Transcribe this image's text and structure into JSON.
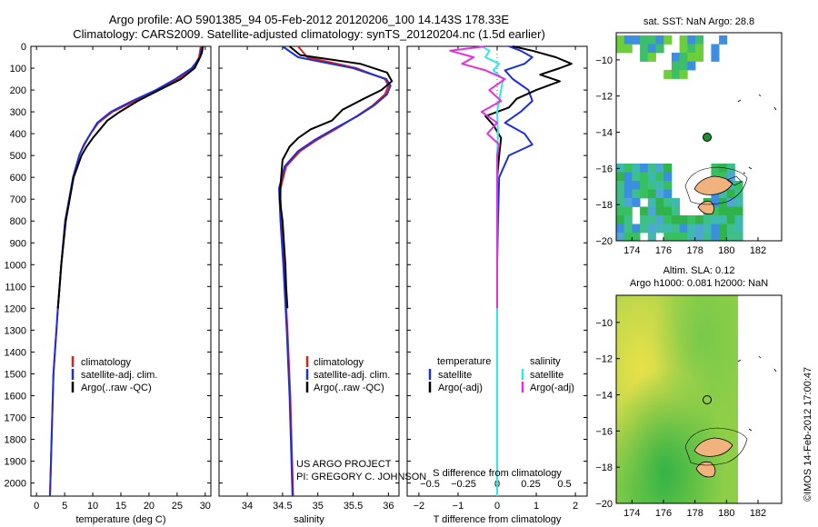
{
  "title_line1": "Argo profile: AO 5901385_94 05-Feb-2012 20120206_100 14.143S 178.33E",
  "title_line2": "Climatology: CARS2009. Satellite-adjusted climatology: synTS_20120204.nc (1.5d earlier)",
  "colors": {
    "clim": "#e0201b",
    "sat": "#1f2fd6",
    "argo": "#000000",
    "sal_sat": "#33e6e6",
    "sal_argo": "#e033e0",
    "land": "#f2b27e",
    "float_marker": "#1a8f2a"
  },
  "chart_data": [
    {
      "type": "line",
      "id": "temperature",
      "xlabel": "temperature (deg C)",
      "ylabel": "",
      "xlim": [
        -1,
        31
      ],
      "ylim": [
        2060,
        0
      ],
      "x_ticks": [
        0,
        5,
        10,
        15,
        20,
        25,
        30
      ],
      "x_tick_labels": [
        "0",
        "5",
        "10",
        "15",
        "20",
        "25",
        "30"
      ],
      "y_ticks": [
        0,
        100,
        200,
        300,
        400,
        500,
        600,
        700,
        800,
        900,
        1000,
        1100,
        1200,
        1300,
        1400,
        1500,
        1600,
        1700,
        1800,
        1900,
        2000
      ],
      "y_tick_labels": [
        "0",
        "100",
        "200",
        "300",
        "400",
        "500",
        "600",
        "700",
        "800",
        "900",
        "1000",
        "1100",
        "1200",
        "1300",
        "1400",
        "1500",
        "1600",
        "1700",
        "1800",
        "1900",
        "2000"
      ],
      "legend": [
        "climatology",
        "satellite-adj. clim.",
        "Argo(..raw -QC)"
      ],
      "legend_position": "bottom-center",
      "series": [
        {
          "name": "climatology",
          "color_key": "clim",
          "depth": [
            0,
            50,
            100,
            150,
            200,
            250,
            300,
            350,
            400,
            450,
            500,
            600,
            700,
            800,
            1000,
            1200,
            1500,
            2060
          ],
          "values": [
            29.2,
            28.9,
            27.8,
            25.2,
            21.7,
            17.5,
            13.5,
            11.0,
            9.6,
            8.4,
            7.6,
            6.5,
            5.8,
            5.1,
            4.4,
            3.8,
            3.0,
            2.4
          ]
        },
        {
          "name": "satellite-adj. clim.",
          "color_key": "sat",
          "depth": [
            0,
            50,
            100,
            150,
            200,
            250,
            300,
            350,
            400,
            450,
            500,
            600,
            700,
            800,
            1000,
            1200,
            1500,
            2060
          ],
          "values": [
            29.4,
            29.1,
            27.6,
            24.7,
            21.2,
            17.0,
            13.2,
            10.8,
            9.6,
            8.5,
            7.6,
            6.5,
            5.8,
            5.1,
            4.4,
            3.8,
            3.0,
            2.4
          ]
        },
        {
          "name": "Argo(..raw -QC)",
          "color_key": "argo",
          "depth": [
            0,
            30,
            60,
            100,
            150,
            200,
            250,
            300,
            340,
            380,
            420,
            460,
            500,
            600,
            700,
            800,
            900,
            1000,
            1100,
            1200
          ],
          "values": [
            29.6,
            29.4,
            28.9,
            28.1,
            25.7,
            21.8,
            18.0,
            14.8,
            12.6,
            11.3,
            10.0,
            8.9,
            8.0,
            6.6,
            5.9,
            5.2,
            4.8,
            4.4,
            4.1,
            3.8
          ]
        }
      ]
    },
    {
      "type": "line",
      "id": "salinity",
      "xlabel": "salinity",
      "xlim": [
        33.6,
        36.15
      ],
      "ylim": [
        2060,
        0
      ],
      "x_ticks": [
        34,
        34.5,
        35,
        35.5,
        36
      ],
      "x_tick_labels": [
        "34",
        "34.5",
        "35",
        "35.5",
        "36"
      ],
      "legend": [
        "climatology",
        "satellite-adj. clim.",
        "Argo(..raw -QC)"
      ],
      "legend_position": "bottom-center",
      "annotation": [
        "US ARGO PROJECT",
        "PI: GREGORY C. JOHNSON"
      ],
      "series": [
        {
          "name": "climatology",
          "color_key": "clim",
          "depth": [
            0,
            50,
            100,
            150,
            180,
            220,
            270,
            320,
            380,
            430,
            480,
            550,
            650,
            800,
            1000,
            1300,
            1600,
            2060
          ],
          "values": [
            34.72,
            34.85,
            35.55,
            35.95,
            36.0,
            35.95,
            35.78,
            35.55,
            35.25,
            34.98,
            34.75,
            34.55,
            34.47,
            34.48,
            34.52,
            34.57,
            34.61,
            34.65
          ]
        },
        {
          "name": "satellite-adj. clim.",
          "color_key": "sat",
          "depth": [
            0,
            50,
            100,
            150,
            180,
            220,
            270,
            320,
            380,
            430,
            480,
            550,
            650,
            800,
            1000,
            1300,
            1600,
            2060
          ],
          "values": [
            34.5,
            34.72,
            35.5,
            35.97,
            36.03,
            35.98,
            35.8,
            35.56,
            35.22,
            34.95,
            34.72,
            34.53,
            34.45,
            34.47,
            34.51,
            34.56,
            34.6,
            34.64
          ]
        },
        {
          "name": "Argo(..raw -QC)",
          "color_key": "argo",
          "depth": [
            0,
            40,
            80,
            120,
            160,
            200,
            240,
            290,
            340,
            380,
            420,
            460,
            520,
            600,
            700,
            800,
            900,
            1000,
            1100,
            1200
          ],
          "values": [
            34.6,
            34.75,
            35.6,
            35.98,
            36.05,
            35.9,
            35.65,
            35.35,
            35.2,
            34.9,
            34.72,
            34.6,
            34.5,
            34.48,
            34.46,
            34.5,
            34.52,
            34.54,
            34.55,
            34.57
          ]
        }
      ]
    },
    {
      "type": "line",
      "id": "difference",
      "xlabel_top": "S difference from climatology",
      "xlabel": "T difference from climatology",
      "xlim": [
        -2.3,
        2.3
      ],
      "ylim": [
        2060,
        0
      ],
      "x_ticks": [
        -2,
        -1,
        0,
        1,
        2
      ],
      "x_tick_labels": [
        "−2",
        "−1",
        "0",
        "1",
        "2"
      ],
      "x_ticks_top_labels": [
        "−0.5",
        "−0.25",
        "0",
        "0.25",
        "0.5"
      ],
      "legend_left_title": "temperature",
      "legend_right_title": "salinity",
      "legend": [
        "satellite",
        "Argo(-adj)",
        "satellite",
        "Argo(-adj)"
      ],
      "legend_position": "bottom-center",
      "series": [
        {
          "name": "temperature satellite",
          "color_key": "sat",
          "depth": [
            0,
            20,
            50,
            80,
            110,
            150,
            200,
            250,
            300,
            350,
            400,
            450,
            500,
            600,
            800,
            1000,
            1200,
            1500,
            2060
          ],
          "values": [
            0.3,
            0.6,
            0.9,
            0.7,
            0.2,
            0.4,
            0.8,
            0.9,
            0.6,
            0.2,
            0.7,
            0.9,
            0.3,
            0.05,
            0.02,
            0.0,
            0.0,
            0.0,
            0.0
          ]
        },
        {
          "name": "temperature Argo(-adj)",
          "color_key": "argo",
          "depth": [
            0,
            20,
            50,
            80,
            100,
            130,
            160,
            200,
            240,
            280,
            320,
            360,
            420,
            500,
            600,
            800,
            1000,
            1200
          ],
          "values": [
            0.4,
            0.9,
            1.5,
            1.9,
            1.6,
            1.1,
            1.6,
            1.0,
            0.5,
            0.3,
            -0.3,
            -0.1,
            0.1,
            0.05,
            0.0,
            0.0,
            0.0,
            0.0
          ]
        },
        {
          "name": "salinity satellite",
          "color_key": "sal_sat",
          "depth": [
            0,
            20,
            50,
            80,
            110,
            150,
            200,
            300,
            400,
            500,
            700,
            1000,
            1500,
            2060
          ],
          "values": [
            -0.4,
            -0.2,
            -0.3,
            0.05,
            -0.1,
            0.15,
            0.1,
            0.0,
            0.02,
            0.0,
            0.0,
            0.0,
            0.0,
            0.0
          ]
        },
        {
          "name": "salinity Argo(-adj)",
          "color_key": "sal_argo",
          "depth": [
            0,
            20,
            50,
            80,
            110,
            150,
            200,
            250,
            300,
            350,
            400,
            450,
            500,
            600,
            800,
            1000,
            1200
          ],
          "values": [
            -0.3,
            -1.2,
            -0.6,
            -0.9,
            -0.3,
            0.2,
            -0.2,
            0.1,
            -0.4,
            0.0,
            -0.25,
            0.05,
            0.0,
            0.0,
            0.0,
            0.0,
            0.0
          ]
        }
      ]
    },
    {
      "type": "heatmap",
      "id": "sst_map",
      "title": "sat. SST: NaN Argo: 28.8",
      "xlim": [
        173,
        183.5
      ],
      "ylim": [
        -20,
        -8.5
      ],
      "x_ticks": [
        174,
        176,
        178,
        180,
        182
      ],
      "x_tick_labels": [
        "174",
        "176",
        "178",
        "180",
        "182"
      ],
      "y_ticks": [
        -10,
        -12,
        -14,
        -16,
        -18,
        -20
      ],
      "y_tick_labels": [
        "−10",
        "−12",
        "−14",
        "−16",
        "−18",
        "−20"
      ],
      "float_position": [
        178.33,
        -14.14
      ]
    },
    {
      "type": "heatmap",
      "id": "sla_map",
      "title_line1": "Altim. SLA: 0.12",
      "title_line2": "Argo h1000: 0.081 h2000: NaN",
      "xlim": [
        173,
        183.5
      ],
      "ylim": [
        -20,
        -8.5
      ],
      "x_ticks": [
        174,
        176,
        178,
        180,
        182
      ],
      "x_tick_labels": [
        "174",
        "176",
        "178",
        "180",
        "182"
      ],
      "y_ticks": [
        -10,
        -12,
        -14,
        -16,
        -18,
        -20
      ],
      "y_tick_labels": [
        "−10",
        "−12",
        "−14",
        "−16",
        "−18",
        "−20"
      ],
      "float_position": [
        178.33,
        -14.14
      ]
    }
  ],
  "credit": "©IMOS 14-Feb-2012 17:00:47"
}
